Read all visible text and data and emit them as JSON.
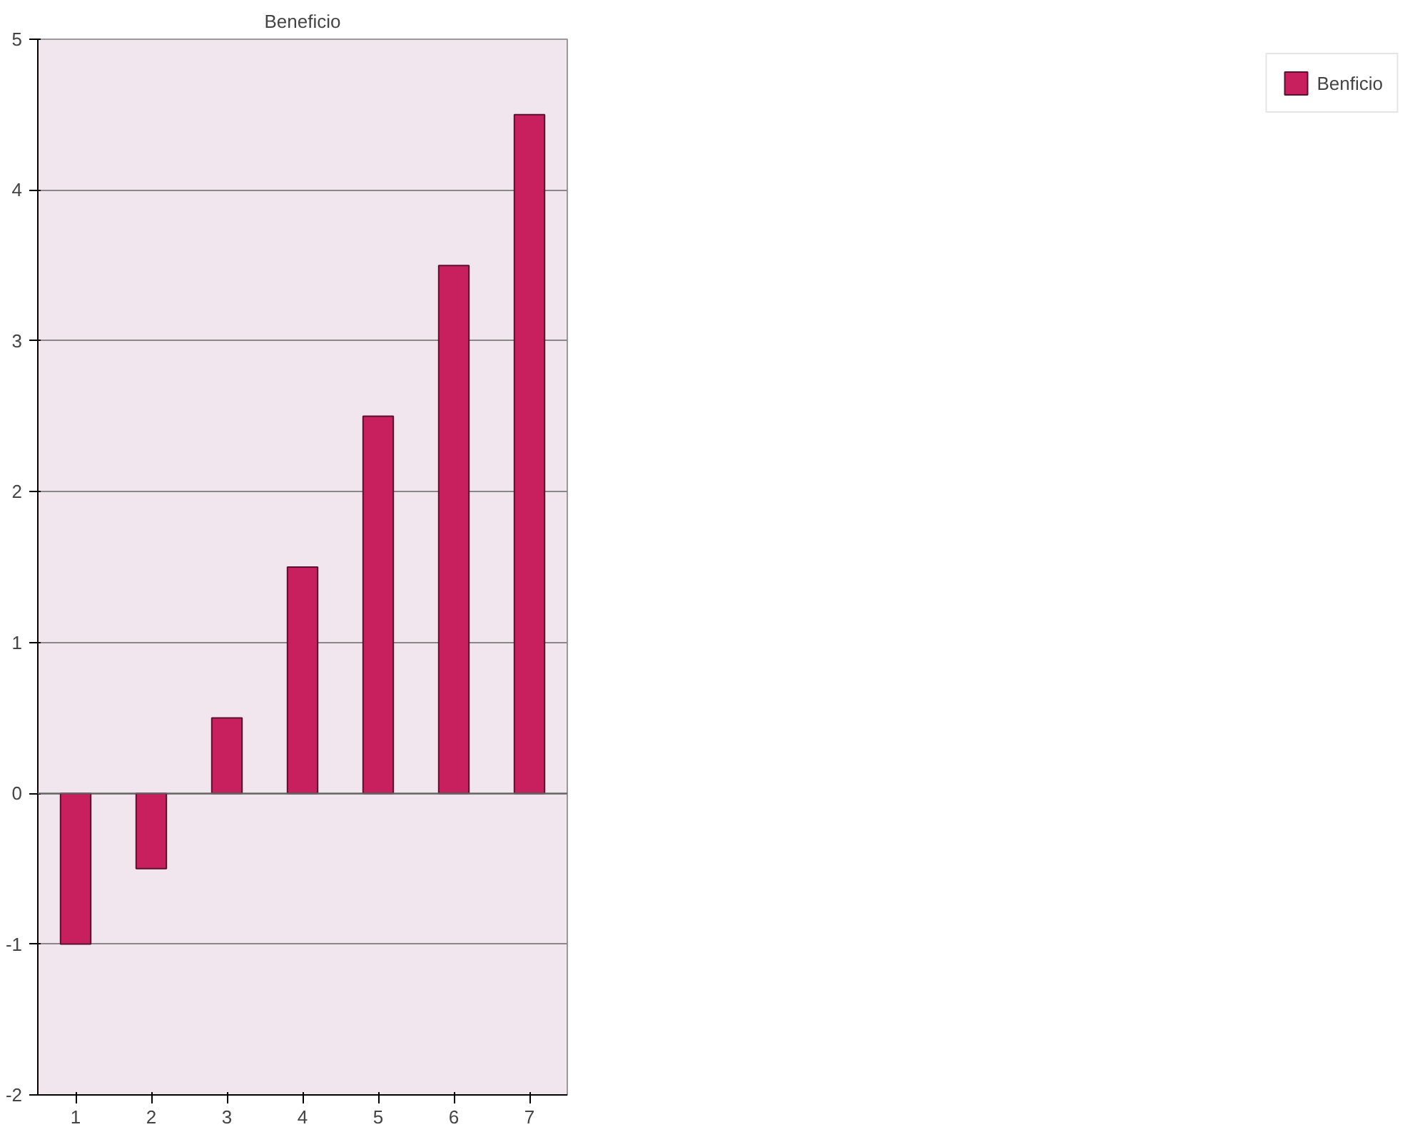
{
  "chart_data": {
    "type": "bar",
    "title": "Beneficio",
    "categories": [
      "1",
      "2",
      "3",
      "4",
      "5",
      "6",
      "7"
    ],
    "series": [
      {
        "name": "Benficio",
        "color": "#c8205e",
        "values": [
          -1,
          -0.5,
          0.5,
          1.5,
          2.5,
          3.5,
          4.5
        ]
      }
    ],
    "ylim": [
      -2,
      5
    ],
    "yticks": [
      -2,
      -1,
      0,
      1,
      2,
      3,
      4,
      5
    ],
    "grid": "y",
    "legend": "right"
  }
}
